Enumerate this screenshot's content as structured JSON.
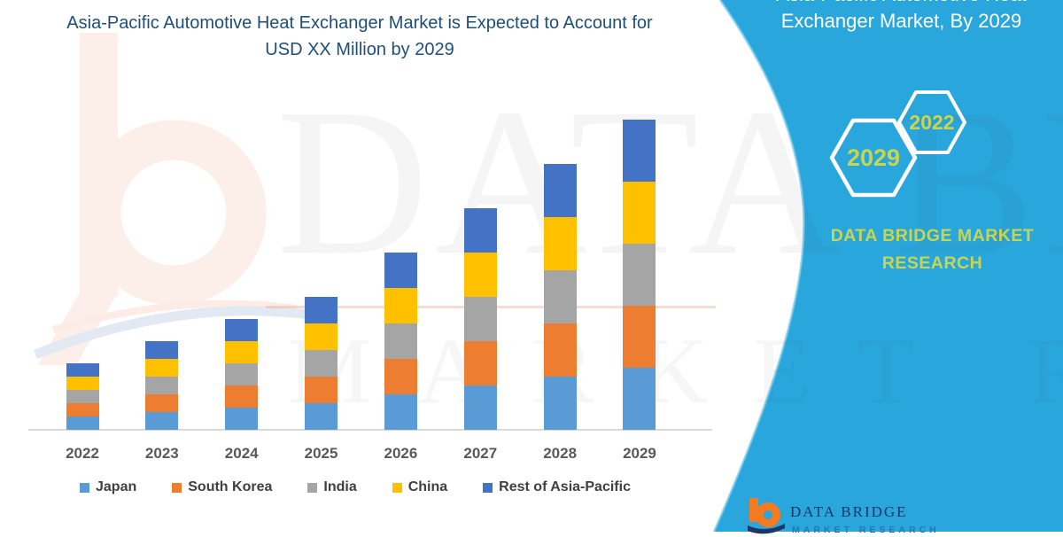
{
  "title": {
    "line1": "Asia-Pacific Automotive Heat Exchanger Market is Expected to Account for",
    "line2": "USD XX Million by 2029"
  },
  "side_panel": {
    "heading_line1": "Asia-Pacific Automotive Heat",
    "heading_line2": "Exchanger Market, By 2029",
    "hexagons": [
      {
        "label": "2029"
      },
      {
        "label": "2022"
      }
    ],
    "brand_line1": "DATA BRIDGE MARKET",
    "brand_line2": "RESEARCH",
    "footer_logo": {
      "title": "DATA BRIDGE",
      "subtitle": "MARKET RESEARCH"
    }
  },
  "watermark": {
    "row1": "DATA BRIDGE",
    "row2": "MARKET RESEARCH"
  },
  "colors": {
    "panel_blue": "#29a7dd",
    "panel_edge_highlight": "#7fcdee",
    "accent_yellow_green": "#c9d64d",
    "title_navy": "#1f4e79",
    "axis_line": "#d9d9d9",
    "year_label": "#595959",
    "legend_text": "#404040",
    "logo_orange": "#f47b20",
    "logo_navy": "#1b3667",
    "logo_blue": "#2d74b5"
  },
  "chart_data": {
    "type": "bar",
    "stacked": true,
    "title": "Asia-Pacific Automotive Heat Exchanger Market is Expected to Account for USD XX Million by 2029",
    "xlabel": "",
    "ylabel": "",
    "y_axis_labels_visible": false,
    "grid": false,
    "legend_position": "bottom",
    "units_note": "Y-axis is unlabeled (market size masked as USD XX Million); values are relative units estimated from bar heights",
    "categories": [
      "2022",
      "2023",
      "2024",
      "2025",
      "2026",
      "2027",
      "2028",
      "2029"
    ],
    "totals": [
      75,
      100,
      125,
      150,
      200,
      250,
      300,
      350
    ],
    "series": [
      {
        "name": "Japan",
        "color": "#5B9BD5",
        "values": [
          15,
          20,
          25,
          30,
          40,
          50,
          60,
          70
        ]
      },
      {
        "name": "South Korea",
        "color": "#ED7D31",
        "values": [
          15,
          20,
          25,
          30,
          40,
          50,
          60,
          70
        ]
      },
      {
        "name": "India",
        "color": "#A5A5A5",
        "values": [
          15,
          20,
          25,
          30,
          40,
          50,
          60,
          70
        ]
      },
      {
        "name": "China",
        "color": "#FFC000",
        "values": [
          15,
          20,
          25,
          30,
          40,
          50,
          60,
          70
        ]
      },
      {
        "name": "Rest of Asia-Pacific",
        "color": "#4472C4",
        "values": [
          15,
          20,
          25,
          30,
          40,
          50,
          60,
          70
        ]
      }
    ]
  }
}
